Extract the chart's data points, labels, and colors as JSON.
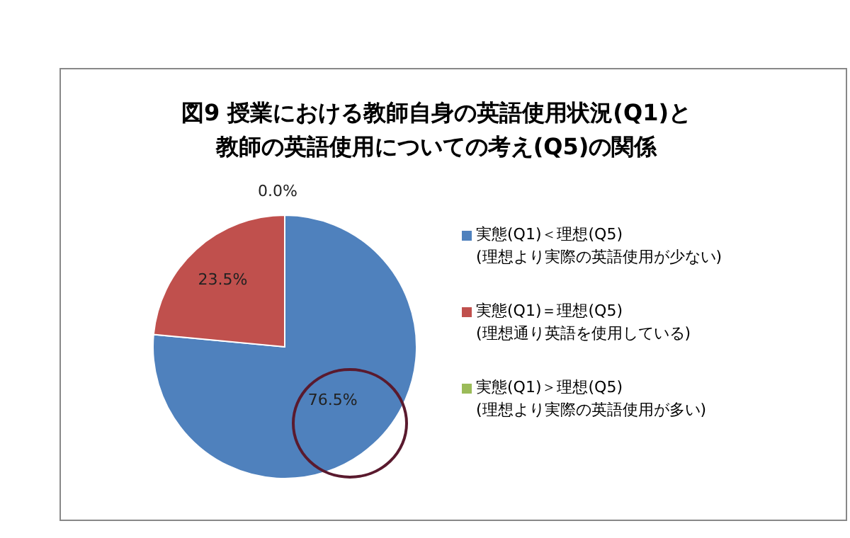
{
  "chart_data": {
    "type": "pie",
    "title": "図9  授業における教師自身の英語使用状況(Q1)と教師の英語使用についての考え(Q5)の関係",
    "categories": [
      "実態(Q1)＜理想(Q5)\n(理想より実際の英語使用が少ない)",
      "実態(Q1)＝理想(Q5)\n(理想通り英語を使用している)",
      "実態(Q1)＞理想(Q5)\n(理想より実際の英語使用が多い)"
    ],
    "values": [
      76.5,
      23.5,
      0
    ],
    "colors": [
      "#4f81bd",
      "#c0504d",
      "#9bbb59"
    ],
    "value_labels": [
      "76.5%",
      "23.5%",
      "0.0%"
    ],
    "legend": "right"
  }
}
